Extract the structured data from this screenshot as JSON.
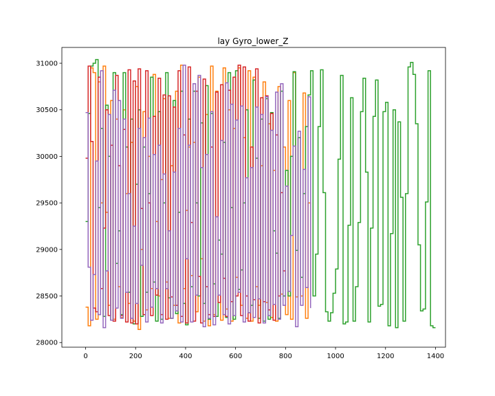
{
  "chart_data": {
    "type": "line",
    "title": "lay Gyro_lower_Z",
    "xlabel": "",
    "ylabel": "",
    "xlim": [
      -95,
      1440
    ],
    "ylim": [
      27950,
      31170
    ],
    "xticks": [
      0,
      200,
      400,
      600,
      800,
      1000,
      1200,
      1400
    ],
    "yticks": [
      28000,
      28500,
      29000,
      29500,
      30000,
      30500,
      31000
    ],
    "grid": false,
    "legend": "none",
    "drawstyle": "steps-post",
    "series": [
      {
        "color": "#ff7f0e",
        "x": [
          0,
          10,
          20,
          30,
          40,
          50,
          60,
          70,
          80,
          90,
          100,
          110,
          120,
          130,
          140,
          150,
          160,
          170,
          180,
          190,
          200,
          210,
          220,
          230,
          240,
          250,
          260,
          270,
          280,
          290,
          300,
          310,
          320,
          330,
          340,
          350,
          360,
          370,
          380,
          390,
          400,
          410,
          420,
          430,
          440,
          450,
          460,
          470,
          480,
          490,
          500,
          510,
          520,
          530,
          540,
          550,
          560,
          570,
          580,
          590,
          600,
          610,
          620,
          630,
          640,
          650,
          660,
          670,
          680,
          690,
          700,
          710,
          720,
          730,
          740,
          750,
          760,
          770,
          780,
          790,
          800,
          810,
          820,
          830,
          840,
          850,
          860,
          870,
          880,
          890,
          900
        ],
        "y": [
          28380,
          28180,
          30950,
          30900,
          28250,
          30800,
          29500,
          30970,
          29400,
          28400,
          30600,
          28250,
          30400,
          28600,
          28270,
          30500,
          29600,
          28420,
          30150,
          28230,
          30750,
          28140,
          29000,
          30480,
          28350,
          30000,
          28580,
          30880,
          29300,
          28500,
          29750,
          30620,
          28650,
          28260,
          29900,
          28400,
          30700,
          28210,
          30980,
          28580,
          29420,
          30100,
          28720,
          30150,
          28330,
          30850,
          28900,
          28230,
          30450,
          28180,
          30970,
          28300,
          30700,
          29100,
          28240,
          30950,
          28360,
          30500,
          28230,
          30300,
          28700,
          30950,
          28400,
          30200,
          28260,
          30920,
          28230,
          30850,
          28600,
          28400,
          29900,
          30800,
          28430,
          30350,
          28270,
          29850,
          28230,
          30750,
          28520,
          30100,
          28300,
          30600,
          28250,
          30900,
          28490,
          30200,
          28500,
          30680,
          28260,
          29500,
          28500
        ]
      },
      {
        "color": "#2ca02c",
        "x": [
          0,
          10,
          20,
          30,
          40,
          50,
          60,
          70,
          80,
          90,
          100,
          110,
          120,
          130,
          140,
          150,
          160,
          170,
          180,
          190,
          200,
          210,
          220,
          230,
          240,
          250,
          260,
          270,
          280,
          290,
          300,
          310,
          320,
          330,
          340,
          350,
          360,
          370,
          380,
          390,
          400,
          410,
          420,
          430,
          440,
          450,
          460,
          470,
          480,
          490,
          500,
          510,
          520,
          530,
          540,
          550,
          560,
          570,
          580,
          590,
          600,
          610,
          620,
          630,
          640,
          650,
          660,
          670,
          680,
          690,
          700,
          710,
          720,
          730,
          740,
          750,
          760,
          770,
          780,
          790,
          800,
          810,
          820,
          830,
          840,
          850,
          860,
          870,
          880,
          890,
          900,
          910,
          920,
          930,
          940,
          950,
          960,
          970,
          980,
          990,
          1000,
          1010,
          1020,
          1030,
          1040,
          1050,
          1060,
          1070,
          1080,
          1090,
          1100,
          1110,
          1120,
          1130,
          1140,
          1150,
          1160,
          1170,
          1180,
          1190,
          1200,
          1210,
          1220,
          1230,
          1240,
          1250,
          1260,
          1270,
          1280,
          1290,
          1300,
          1310,
          1320,
          1330,
          1340,
          1350,
          1360,
          1370,
          1380,
          1390,
          1400
        ],
        "y": [
          29300,
          30460,
          30970,
          31000,
          31040,
          29450,
          30300,
          28280,
          30550,
          30000,
          28240,
          30900,
          28850,
          29200,
          28300,
          30900,
          30100,
          28540,
          30400,
          28200,
          29700,
          30500,
          28280,
          30100,
          28540,
          29600,
          30850,
          28650,
          28230,
          30480,
          28250,
          29500,
          30900,
          28480,
          28260,
          30600,
          28310,
          29400,
          30700,
          28420,
          28190,
          30400,
          28600,
          30700,
          29500,
          28500,
          30360,
          28420,
          30760,
          28250,
          30460,
          28630,
          28280,
          29100,
          28950,
          30150,
          28270,
          30900,
          29450,
          28250,
          30920,
          28570,
          28780,
          29500,
          30500,
          28320,
          28400,
          30820,
          29980,
          28260,
          30400,
          28230,
          30620,
          28250,
          30470,
          29200,
          28960,
          28260,
          30700,
          28500,
          29850,
          28500,
          30000,
          30910,
          28990,
          30200,
          28700,
          29600,
          30320,
          30660,
          30920,
          28500,
          28950,
          30320,
          30930,
          29610,
          28330,
          28230,
          28320,
          28530,
          28790,
          29970,
          30870,
          28200,
          28220,
          29260,
          30630,
          28230,
          28600,
          29290,
          30480,
          30840,
          29830,
          28220,
          29230,
          30430,
          30820,
          28390,
          28410,
          30480,
          30580,
          28180,
          29170,
          30500,
          28160,
          30370,
          29560,
          28230,
          29600,
          30960,
          31010,
          30880,
          30350,
          29050,
          28340,
          28360,
          29510,
          30920,
          28180,
          28160,
          28160
        ]
      },
      {
        "color": "#d62728",
        "x": [
          0,
          10,
          20,
          30,
          40,
          50,
          60,
          70,
          80,
          90,
          100,
          110,
          120,
          130,
          140,
          150,
          160,
          170,
          180,
          190,
          200,
          210,
          220,
          230,
          240,
          250,
          260,
          270,
          280,
          290,
          300,
          310,
          320,
          330,
          340,
          350,
          360,
          370,
          380,
          390,
          400,
          410,
          420,
          430,
          440,
          450,
          460,
          470,
          480,
          490,
          500,
          510,
          520,
          530,
          540,
          550,
          560,
          570,
          580,
          590,
          600,
          610,
          620,
          630,
          640,
          650,
          660,
          670,
          680,
          690,
          700,
          710,
          720,
          730,
          740,
          750,
          760,
          770,
          780,
          790,
          800
        ],
        "y": [
          29980,
          30970,
          30160,
          28370,
          28330,
          30850,
          28580,
          29230,
          30500,
          28290,
          30120,
          28230,
          30870,
          29900,
          28290,
          30290,
          28220,
          30930,
          28210,
          30810,
          28200,
          30940,
          29440,
          28300,
          30920,
          29500,
          28290,
          30430,
          28510,
          30840,
          28300,
          30660,
          28250,
          30650,
          28490,
          30530,
          28400,
          30920,
          28280,
          30230,
          28210,
          30960,
          29290,
          28230,
          30700,
          28710,
          28210,
          30830,
          28600,
          28300,
          30100,
          28280,
          30690,
          28430,
          30770,
          28690,
          28280,
          30710,
          28440,
          30850,
          28500,
          30980,
          28290,
          30960,
          28500,
          28230,
          30100,
          28460,
          30940,
          28210,
          30630,
          28440,
          30650,
          28350,
          30460,
          28240,
          30230,
          28500,
          29610,
          28770,
          28710
        ]
      },
      {
        "color": "#9467bd",
        "x": [
          0,
          10,
          20,
          30,
          40,
          50,
          60,
          70,
          80,
          90,
          100,
          110,
          120,
          130,
          140,
          150,
          160,
          170,
          180,
          190,
          200,
          210,
          220,
          230,
          240,
          250,
          260,
          270,
          280,
          290,
          300,
          310,
          320,
          330,
          340,
          350,
          360,
          370,
          380,
          390,
          400,
          410,
          420,
          430,
          440,
          450,
          460,
          470,
          480,
          490,
          500,
          510,
          520,
          530,
          540,
          550,
          560,
          570,
          580,
          590,
          600,
          610,
          620,
          630,
          640,
          650,
          660,
          670,
          680,
          690,
          700,
          710,
          720,
          730,
          740,
          750,
          760,
          770,
          780,
          790,
          800,
          810,
          820,
          830,
          840,
          850,
          860,
          870,
          880,
          890,
          900
        ],
        "y": [
          30470,
          28810,
          28240,
          28730,
          29950,
          28300,
          30920,
          28160,
          28770,
          30450,
          28240,
          30710,
          28370,
          30600,
          28260,
          30400,
          28540,
          29600,
          28260,
          29250,
          28420,
          30300,
          28830,
          30200,
          28220,
          30410,
          28380,
          30020,
          28580,
          30120,
          28210,
          29810,
          28580,
          29200,
          28260,
          29830,
          28340,
          30300,
          28220,
          30980,
          28900,
          30120,
          28220,
          30780,
          28510,
          30870,
          29880,
          28170,
          30020,
          28260,
          30480,
          28190,
          29350,
          28510,
          30170,
          28300,
          30790,
          28200,
          30560,
          28290,
          30390,
          28540,
          30540,
          28220,
          29770,
          28320,
          29880,
          28270,
          30530,
          28470,
          30450,
          28210,
          30640,
          28290,
          30280,
          28410,
          30690,
          28250,
          30780,
          28400,
          29680,
          28550,
          29150,
          30110,
          28170,
          30270,
          28400,
          29860,
          28590,
          30640,
          28370
        ]
      }
    ]
  }
}
